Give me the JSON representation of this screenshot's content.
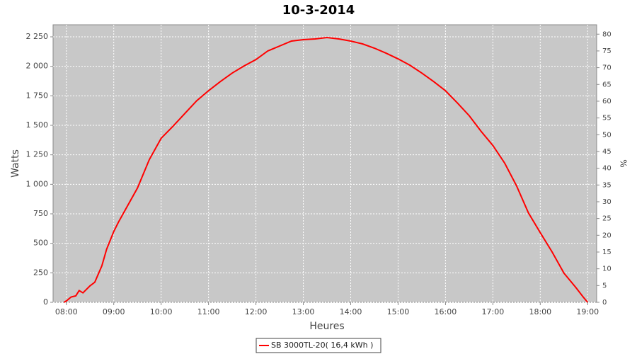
{
  "chart_data": {
    "type": "line",
    "title": "10-3-2014",
    "x_label": "Heures",
    "y_label": "Watts",
    "y2_label": "%",
    "x": [
      7.95,
      8.0,
      8.1,
      8.2,
      8.27,
      8.35,
      8.5,
      8.6,
      8.75,
      8.85,
      9.0,
      9.1,
      9.25,
      9.5,
      9.75,
      10.0,
      10.25,
      10.5,
      10.75,
      11.0,
      11.25,
      11.5,
      11.75,
      12.0,
      12.25,
      12.5,
      12.75,
      13.0,
      13.25,
      13.5,
      13.75,
      14.0,
      14.25,
      14.5,
      14.75,
      15.0,
      15.25,
      15.5,
      15.75,
      16.0,
      16.25,
      16.5,
      16.75,
      17.0,
      17.25,
      17.5,
      17.75,
      18.0,
      18.25,
      18.5,
      18.75,
      18.9,
      19.0
    ],
    "series": [
      {
        "name": "SB 3000TL-20( 16,4 kWh )",
        "color": "#ff0000",
        "values": [
          0,
          12,
          45,
          55,
          100,
          80,
          140,
          170,
          310,
          450,
          600,
          680,
          788,
          968,
          1209,
          1390,
          1492,
          1600,
          1708,
          1793,
          1871,
          1943,
          2003,
          2057,
          2130,
          2172,
          2214,
          2226,
          2232,
          2244,
          2232,
          2214,
          2190,
          2154,
          2111,
          2063,
          2009,
          1943,
          1871,
          1793,
          1690,
          1582,
          1450,
          1329,
          1179,
          987,
          758,
          590,
          427,
          247,
          126,
          48,
          0
        ]
      }
    ],
    "xlim": [
      7.72,
      19.19
    ],
    "xticks": [
      {
        "value": 8,
        "label": "08:00"
      },
      {
        "value": 9,
        "label": "09:00"
      },
      {
        "value": 10,
        "label": "10:00"
      },
      {
        "value": 11,
        "label": "11:00"
      },
      {
        "value": 12,
        "label": "12:00"
      },
      {
        "value": 13,
        "label": "13:00"
      },
      {
        "value": 14,
        "label": "14:00"
      },
      {
        "value": 15,
        "label": "15:00"
      },
      {
        "value": 16,
        "label": "16:00"
      },
      {
        "value": 17,
        "label": "17:00"
      },
      {
        "value": 18,
        "label": "18:00"
      },
      {
        "value": 19,
        "label": "19:00"
      }
    ],
    "ylim": [
      0,
      2352
    ],
    "yticks": [
      0,
      250,
      500,
      750,
      {
        "value": 1000,
        "label": "1 000"
      },
      {
        "value": 1250,
        "label": "1 250"
      },
      {
        "value": 1500,
        "label": "1 500"
      },
      {
        "value": 1750,
        "label": "1 750"
      },
      {
        "value": 2000,
        "label": "2 000"
      },
      {
        "value": 2250,
        "label": "2 250"
      }
    ],
    "y2lim": [
      0,
      82.8
    ],
    "y2ticks": [
      0,
      5,
      10,
      15,
      20,
      25,
      30,
      35,
      40,
      45,
      50,
      55,
      60,
      65,
      70,
      75,
      80
    ],
    "grid": true,
    "legend": "bottom",
    "background": "#c8c8c8"
  }
}
